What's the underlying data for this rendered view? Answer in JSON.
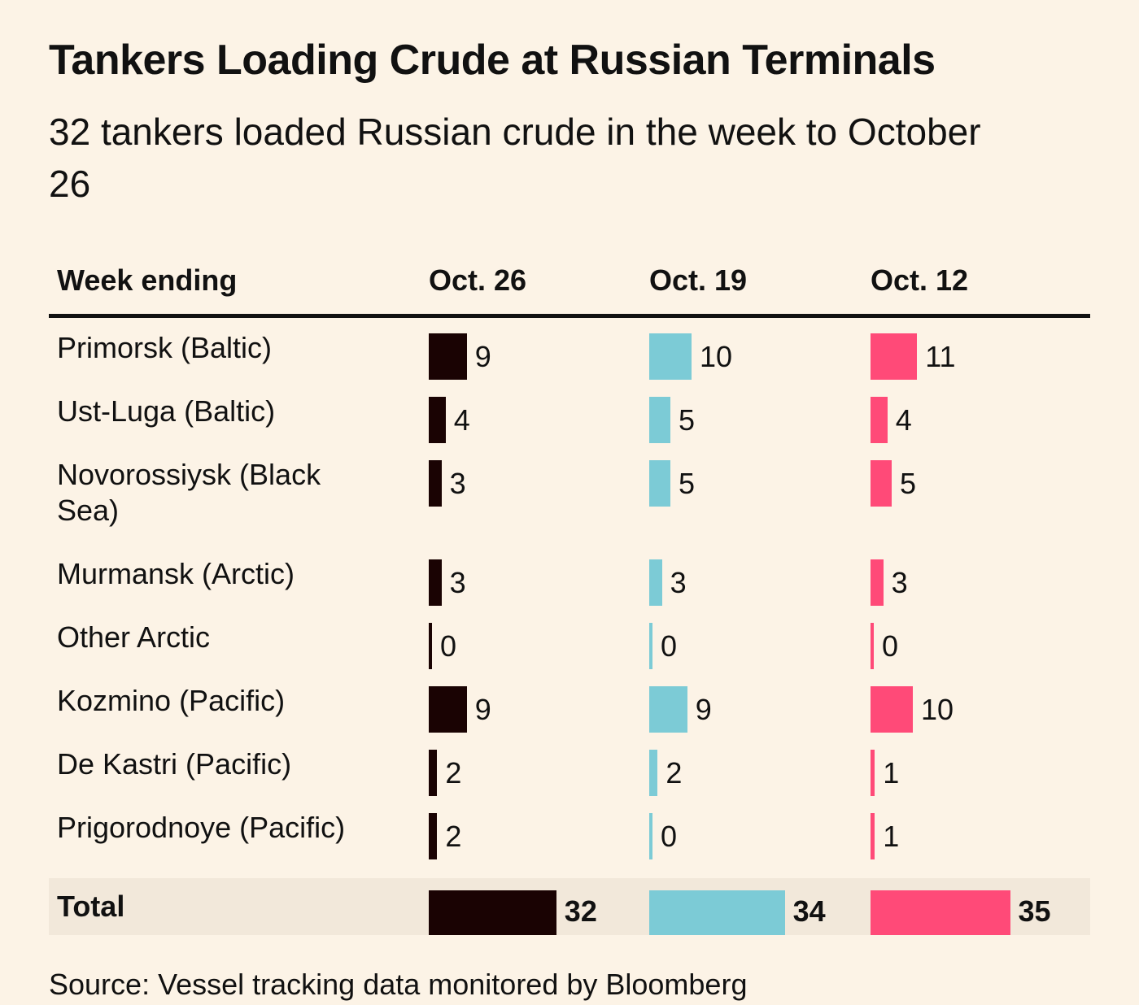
{
  "chart_data": {
    "type": "bar-table",
    "title": "Tankers Loading Crude at Russian Terminals",
    "subtitle": "32 tankers loaded Russian crude in the week to October 26",
    "category_header": "Week ending",
    "categories": [
      "Primorsk (Baltic)",
      "Ust-Luga (Baltic)",
      "Novorossiysk (Black Sea)",
      "Murmansk (Arctic)",
      "Other Arctic",
      "Kozmino (Pacific)",
      "De Kastri (Pacific)",
      "Prigorodnoye (Pacific)"
    ],
    "series": [
      {
        "name": "Oct. 26",
        "color": "#1a0303",
        "values": [
          9,
          4,
          3,
          3,
          0,
          9,
          2,
          2
        ],
        "total": 32
      },
      {
        "name": "Oct. 19",
        "color": "#7ccbd6",
        "values": [
          10,
          5,
          5,
          3,
          0,
          9,
          2,
          0
        ],
        "total": 34
      },
      {
        "name": "Oct. 12",
        "color": "#ff4a78",
        "values": [
          11,
          4,
          5,
          3,
          0,
          10,
          1,
          1
        ],
        "total": 35
      }
    ],
    "total_label": "Total",
    "source": "Source: Vessel tracking data monitored by Bloomberg"
  }
}
